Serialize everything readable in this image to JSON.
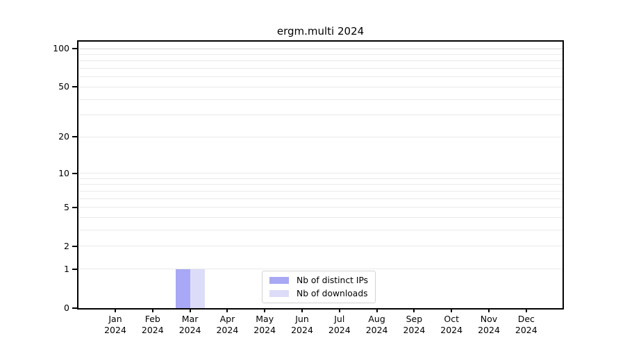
{
  "figure": {
    "title": "ergm.multi 2024"
  },
  "chart_data": {
    "type": "bar",
    "title": "ergm.multi 2024",
    "xlabel": "",
    "ylabel": "",
    "yscale": "log1p",
    "ylim": [
      0,
      100
    ],
    "grid": true,
    "legend_position": "inside-bottom-center",
    "categories": [
      "Jan 2024",
      "Feb 2024",
      "Mar 2024",
      "Apr 2024",
      "May 2024",
      "Jun 2024",
      "Jul 2024",
      "Aug 2024",
      "Sep 2024",
      "Oct 2024",
      "Nov 2024",
      "Dec 2024"
    ],
    "x_tick_labels": [
      {
        "month": "Jan",
        "year": "2024"
      },
      {
        "month": "Feb",
        "year": "2024"
      },
      {
        "month": "Mar",
        "year": "2024"
      },
      {
        "month": "Apr",
        "year": "2024"
      },
      {
        "month": "May",
        "year": "2024"
      },
      {
        "month": "Jun",
        "year": "2024"
      },
      {
        "month": "Jul",
        "year": "2024"
      },
      {
        "month": "Aug",
        "year": "2024"
      },
      {
        "month": "Sep",
        "year": "2024"
      },
      {
        "month": "Oct",
        "year": "2024"
      },
      {
        "month": "Nov",
        "year": "2024"
      },
      {
        "month": "Dec",
        "year": "2024"
      }
    ],
    "ytick_values": [
      0,
      1,
      2,
      5,
      10,
      20,
      50,
      100
    ],
    "grid_values": [
      1,
      2,
      3,
      4,
      5,
      6,
      7,
      8,
      9,
      10,
      20,
      30,
      40,
      50,
      60,
      70,
      80,
      90,
      100
    ],
    "series": [
      {
        "name": "Nb of distinct IPs",
        "color": "#a8a8f4",
        "values": [
          0,
          0,
          1,
          0,
          0,
          0,
          0,
          0,
          0,
          0,
          0,
          0
        ]
      },
      {
        "name": "Nb of downloads",
        "color": "#dcdcf8",
        "values": [
          0,
          0,
          1,
          0,
          0,
          0,
          0,
          0,
          0,
          0,
          0,
          0
        ]
      }
    ],
    "colors": {
      "grid": "#e9e9e9",
      "grid_top_major": "#d2d2d2",
      "axis": "#000000",
      "legend_border": "#d2d2d2"
    }
  }
}
